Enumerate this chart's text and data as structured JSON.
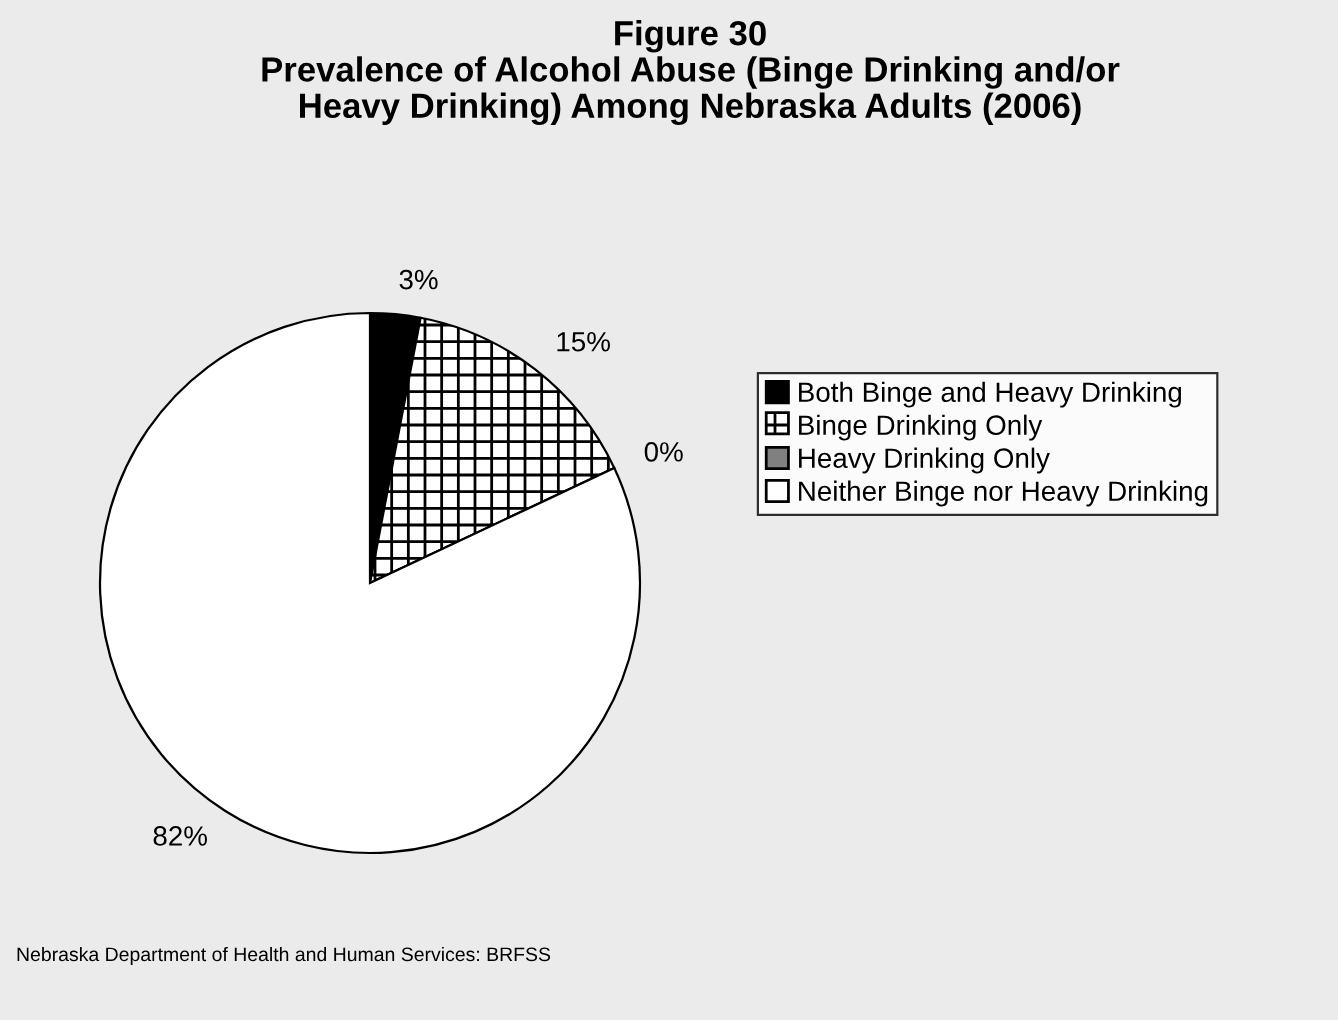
{
  "chart_data": {
    "type": "pie",
    "title": "Figure 30\nPrevalence of Alcohol Abuse (Binge Drinking and/or\nHeavy Drinking) Among Nebraska Adults (2006)",
    "categories": [
      "Both Binge and Heavy Drinking",
      "Binge Drinking Only",
      "Heavy Drinking Only",
      "Neither Binge nor Heavy Drinking"
    ],
    "values": [
      3,
      15,
      0,
      82
    ],
    "value_labels": [
      "3%",
      "15%",
      "0%",
      "82%"
    ],
    "colors": [
      "#000000",
      "#ffffff",
      "#808080",
      "#ffffff"
    ],
    "legend": "right",
    "annotations": [
      "Nebraska Department of Health and Human Services: BRFSS"
    ]
  }
}
